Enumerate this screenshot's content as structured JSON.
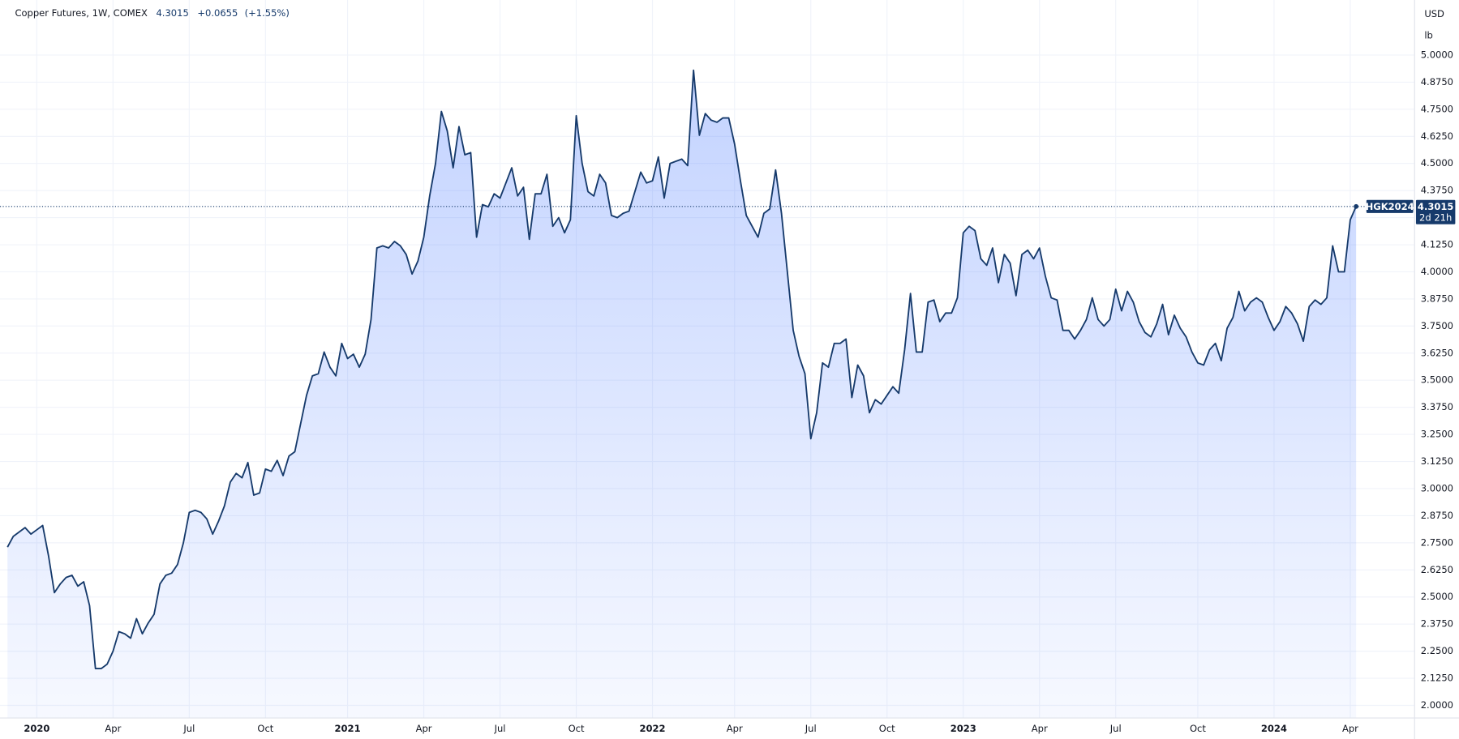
{
  "header": {
    "title": "Copper Futures, 1W, COMEX",
    "last": "4.3015",
    "change": "+0.0655",
    "change_pct": "(+1.55%)"
  },
  "price_axis": {
    "currency": "USD",
    "unit": "lb"
  },
  "last_label": {
    "symbol": "HGK2024",
    "countdown": "2d 21h"
  },
  "chart_data": {
    "type": "area",
    "color": "#163a6b",
    "fill": "#2962ff",
    "grid": true,
    "categories": [
      null,
      null,
      null,
      null,
      null,
      "2020",
      null,
      null,
      null,
      null,
      null,
      null,
      null,
      null,
      null,
      null,
      null,
      null,
      "Apr",
      null,
      null,
      null,
      null,
      null,
      null,
      null,
      null,
      null,
      null,
      null,
      null,
      "Jul",
      null,
      null,
      null,
      null,
      null,
      null,
      null,
      null,
      null,
      null,
      null,
      null,
      "Oct",
      null,
      null,
      null,
      null,
      null,
      null,
      null,
      null,
      null,
      null,
      null,
      null,
      null,
      "2021",
      null,
      null,
      null,
      null,
      null,
      null,
      null,
      null,
      null,
      null,
      null,
      null,
      "Apr",
      null,
      null,
      null,
      null,
      null,
      null,
      null,
      null,
      null,
      null,
      null,
      null,
      "Jul",
      null,
      null,
      null,
      null,
      null,
      null,
      null,
      null,
      null,
      null,
      null,
      null,
      "Oct",
      null,
      null,
      null,
      null,
      null,
      null,
      null,
      null,
      null,
      null,
      null,
      null,
      "2022",
      null,
      null,
      null,
      null,
      null,
      null,
      null,
      null,
      null,
      null,
      null,
      null,
      null,
      "Apr",
      null,
      null,
      null,
      null,
      null,
      null,
      null,
      null,
      null,
      null,
      null,
      null,
      "Jul",
      null,
      null,
      null,
      null,
      null,
      null,
      null,
      null,
      null,
      null,
      null,
      null,
      "Oct",
      null,
      null,
      null,
      null,
      null,
      null,
      null,
      null,
      null,
      null,
      null,
      null,
      "2023",
      null,
      null,
      null,
      null,
      null,
      null,
      null,
      null,
      null,
      null,
      null,
      null,
      "Apr",
      null,
      null,
      null,
      null,
      null,
      null,
      null,
      null,
      null,
      null,
      null,
      null,
      "Jul",
      null,
      null,
      null,
      null,
      null,
      null,
      null,
      null,
      null,
      null,
      null,
      null,
      null,
      "Oct",
      null,
      null,
      null,
      null,
      null,
      null,
      null,
      null,
      null,
      null,
      null,
      null,
      "2024",
      null,
      null,
      null,
      null,
      null,
      null,
      null,
      null,
      null,
      null,
      null,
      null,
      "Apr",
      null
    ],
    "values": [
      2.73,
      2.78,
      2.8,
      2.82,
      2.79,
      2.81,
      2.83,
      2.69,
      2.52,
      2.56,
      2.59,
      2.6,
      2.55,
      2.57,
      2.46,
      2.17,
      2.17,
      2.19,
      2.25,
      2.34,
      2.33,
      2.31,
      2.4,
      2.33,
      2.38,
      2.42,
      2.56,
      2.6,
      2.61,
      2.65,
      2.75,
      2.89,
      2.9,
      2.89,
      2.86,
      2.79,
      2.85,
      2.92,
      3.03,
      3.07,
      3.05,
      3.12,
      2.97,
      2.98,
      3.09,
      3.08,
      3.13,
      3.06,
      3.15,
      3.17,
      3.3,
      3.43,
      3.52,
      3.53,
      3.63,
      3.56,
      3.52,
      3.67,
      3.6,
      3.62,
      3.56,
      3.62,
      3.78,
      4.11,
      4.12,
      4.11,
      4.14,
      4.12,
      4.08,
      3.99,
      4.05,
      4.16,
      4.35,
      4.5,
      4.74,
      4.65,
      4.48,
      4.67,
      4.54,
      4.55,
      4.16,
      4.31,
      4.3,
      4.36,
      4.34,
      4.41,
      4.48,
      4.35,
      4.39,
      4.15,
      4.36,
      4.36,
      4.45,
      4.21,
      4.25,
      4.18,
      4.24,
      4.72,
      4.5,
      4.37,
      4.35,
      4.45,
      4.41,
      4.26,
      4.25,
      4.27,
      4.28,
      4.37,
      4.46,
      4.41,
      4.42,
      4.53,
      4.34,
      4.5,
      4.51,
      4.52,
      4.49,
      4.93,
      4.63,
      4.73,
      4.7,
      4.69,
      4.71,
      4.71,
      4.59,
      4.42,
      4.26,
      4.21,
      4.16,
      4.27,
      4.29,
      4.47,
      4.27,
      4.0,
      3.73,
      3.61,
      3.53,
      3.23,
      3.35,
      3.58,
      3.56,
      3.67,
      3.67,
      3.69,
      3.42,
      3.57,
      3.52,
      3.35,
      3.41,
      3.39,
      3.43,
      3.47,
      3.44,
      3.64,
      3.9,
      3.63,
      3.63,
      3.86,
      3.87,
      3.77,
      3.81,
      3.81,
      3.88,
      4.18,
      4.21,
      4.19,
      4.06,
      4.03,
      4.11,
      3.95,
      4.08,
      4.04,
      3.89,
      4.08,
      4.1,
      4.06,
      4.11,
      3.98,
      3.88,
      3.87,
      3.73,
      3.73,
      3.69,
      3.73,
      3.78,
      3.88,
      3.78,
      3.75,
      3.78,
      3.92,
      3.82,
      3.91,
      3.86,
      3.77,
      3.72,
      3.7,
      3.76,
      3.85,
      3.71,
      3.8,
      3.74,
      3.7,
      3.63,
      3.58,
      3.57,
      3.64,
      3.67,
      3.59,
      3.74,
      3.79,
      3.91,
      3.82,
      3.86,
      3.88,
      3.86,
      3.79,
      3.73,
      3.77,
      3.84,
      3.81,
      3.76,
      3.68,
      3.84,
      3.87,
      3.85,
      3.88,
      4.12,
      4.0,
      4.0,
      4.24,
      4.3015
    ],
    "ylim": [
      1.944,
      5.254
    ],
    "yticks": [
      {
        "value": 2,
        "label": "2.0000"
      },
      {
        "value": 2.125,
        "label": "2.1250"
      },
      {
        "value": 2.25,
        "label": "2.2500"
      },
      {
        "value": 2.375,
        "label": "2.3750"
      },
      {
        "value": 2.5,
        "label": "2.5000"
      },
      {
        "value": 2.625,
        "label": "2.6250"
      },
      {
        "value": 2.75,
        "label": "2.7500"
      },
      {
        "value": 2.875,
        "label": "2.8750"
      },
      {
        "value": 3,
        "label": "3.0000"
      },
      {
        "value": 3.125,
        "label": "3.1250"
      },
      {
        "value": 3.25,
        "label": "3.2500"
      },
      {
        "value": 3.375,
        "label": "3.3750"
      },
      {
        "value": 3.5,
        "label": "3.5000"
      },
      {
        "value": 3.625,
        "label": "3.6250"
      },
      {
        "value": 3.75,
        "label": "3.7500"
      },
      {
        "value": 3.875,
        "label": "3.8750"
      },
      {
        "value": 4,
        "label": "4.0000"
      },
      {
        "value": 4.125,
        "label": "4.1250"
      },
      {
        "value": 4.25,
        "label": "4.2500"
      },
      {
        "value": 4.375,
        "label": "4.3750"
      },
      {
        "value": 4.5,
        "label": "4.5000"
      },
      {
        "value": 4.625,
        "label": "4.6250"
      },
      {
        "value": 4.75,
        "label": "4.7500"
      },
      {
        "value": 4.875,
        "label": "4.8750"
      },
      {
        "value": 5,
        "label": "5.0000"
      }
    ]
  }
}
